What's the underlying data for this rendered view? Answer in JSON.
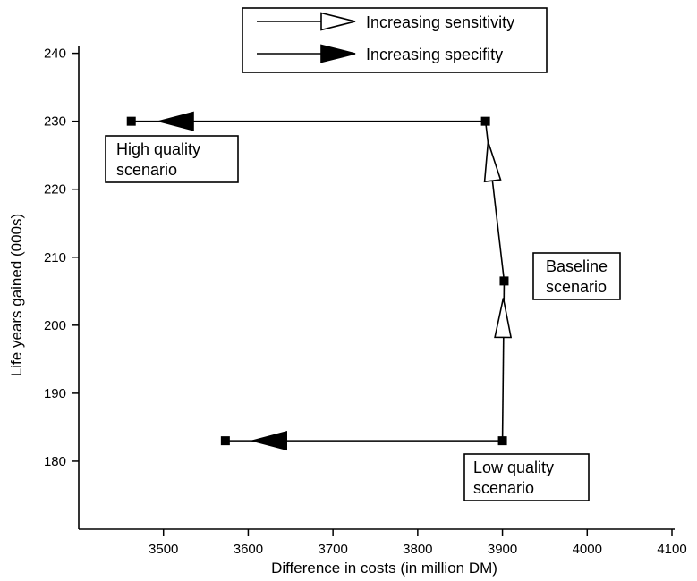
{
  "chart_data": {
    "type": "line",
    "xlabel": "Difference in costs (in million DM)",
    "ylabel": "Life years gained (000s)",
    "xlim": [
      3400,
      4100
    ],
    "ylim": [
      170,
      241
    ],
    "x_ticks": [
      3500,
      3600,
      3700,
      3800,
      3900,
      4000,
      4100
    ],
    "y_ticks": [
      180,
      190,
      200,
      210,
      220,
      230,
      240
    ],
    "grid": false,
    "legend": {
      "position": "top-center",
      "entries": [
        {
          "label": "Increasing sensitivity",
          "marker": "open-arrow"
        },
        {
          "label": "Increasing specifity",
          "marker": "filled-arrow"
        }
      ]
    },
    "points": [
      {
        "x": 3462,
        "y": 230
      },
      {
        "x": 3880,
        "y": 230
      },
      {
        "x": 3902,
        "y": 206.5
      },
      {
        "x": 3900,
        "y": 183
      },
      {
        "x": 3573,
        "y": 183
      }
    ],
    "segments": [
      {
        "from": {
          "x": 3880,
          "y": 230
        },
        "to": {
          "x": 3462,
          "y": 230
        },
        "arrow": "filled",
        "arrow_at": {
          "x": 3495,
          "y": 230
        }
      },
      {
        "from": {
          "x": 3902,
          "y": 206.5
        },
        "to": {
          "x": 3880,
          "y": 230
        },
        "arrow": "open",
        "arrow_at": {
          "x": 3883,
          "y": 227
        }
      },
      {
        "from": {
          "x": 3900,
          "y": 183
        },
        "to": {
          "x": 3902,
          "y": 206.5
        },
        "arrow": "open",
        "arrow_at": {
          "x": 3901,
          "y": 204
        }
      },
      {
        "from": {
          "x": 3900,
          "y": 183
        },
        "to": {
          "x": 3573,
          "y": 183
        },
        "arrow": "filled",
        "arrow_at": {
          "x": 3605,
          "y": 183
        }
      }
    ],
    "annotations": [
      {
        "lines": [
          "High quality",
          "scenario"
        ]
      },
      {
        "lines": [
          "Baseline",
          "scenario"
        ]
      },
      {
        "lines": [
          "Low quality",
          "scenario"
        ]
      }
    ]
  }
}
